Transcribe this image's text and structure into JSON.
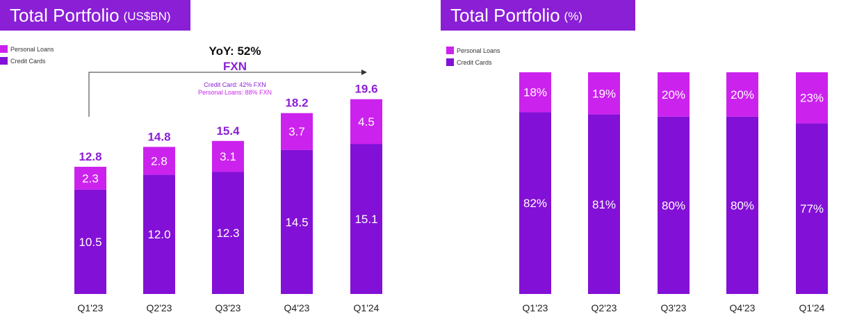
{
  "colors": {
    "personal_loans": "#cc22ee",
    "credit_cards": "#8310d6",
    "banner": "#8a1fd6",
    "total_label": "#8a1fd6"
  },
  "left": {
    "title": "Total Portfolio",
    "unit": "(US$BN)",
    "yoy": "YoY: 52%",
    "fxn": "FXN",
    "note_cc": "Credit Card: 42% FXN",
    "note_pl": "Personal Loans: 88% FXN"
  },
  "right": {
    "title": "Total Portfolio",
    "unit": "(%)"
  },
  "chart_data": [
    {
      "type": "bar",
      "stacked": true,
      "title": "Total Portfolio (US$BN)",
      "categories": [
        "Q1'23",
        "Q2'23",
        "Q3'23",
        "Q4'23",
        "Q1'24"
      ],
      "series": [
        {
          "name": "Credit Cards",
          "values": [
            10.5,
            12.0,
            12.3,
            14.5,
            15.1
          ],
          "labels": [
            "10.5",
            "12.0",
            "12.3",
            "14.5",
            "15.1"
          ]
        },
        {
          "name": "Personal Loans",
          "values": [
            2.3,
            2.8,
            3.1,
            3.7,
            4.5
          ],
          "labels": [
            "2.3",
            "2.8",
            "3.1",
            "3.7",
            "4.5"
          ]
        }
      ],
      "totals": [
        12.8,
        14.8,
        15.4,
        18.2,
        19.6
      ],
      "total_labels": [
        "12.8",
        "14.8",
        "15.4",
        "18.2",
        "19.6"
      ],
      "ylim": [
        0,
        20
      ],
      "grid": false,
      "legend": [
        "Personal Loans",
        "Credit Cards"
      ],
      "legend_position": "top-left"
    },
    {
      "type": "bar",
      "stacked": true,
      "title": "Total Portfolio (%)",
      "categories": [
        "Q1'23",
        "Q2'23",
        "Q3'23",
        "Q4'23",
        "Q1'24"
      ],
      "series": [
        {
          "name": "Credit Cards",
          "values": [
            82,
            81,
            80,
            80,
            77
          ],
          "labels": [
            "82%",
            "81%",
            "80%",
            "80%",
            "77%"
          ]
        },
        {
          "name": "Personal Loans",
          "values": [
            18,
            19,
            20,
            20,
            23
          ],
          "labels": [
            "18%",
            "19%",
            "20%",
            "20%",
            "23%"
          ]
        }
      ],
      "ylim": [
        0,
        100
      ],
      "grid": false,
      "legend": [
        "Personal Loans",
        "Credit Cards"
      ],
      "legend_position": "top-left"
    }
  ]
}
